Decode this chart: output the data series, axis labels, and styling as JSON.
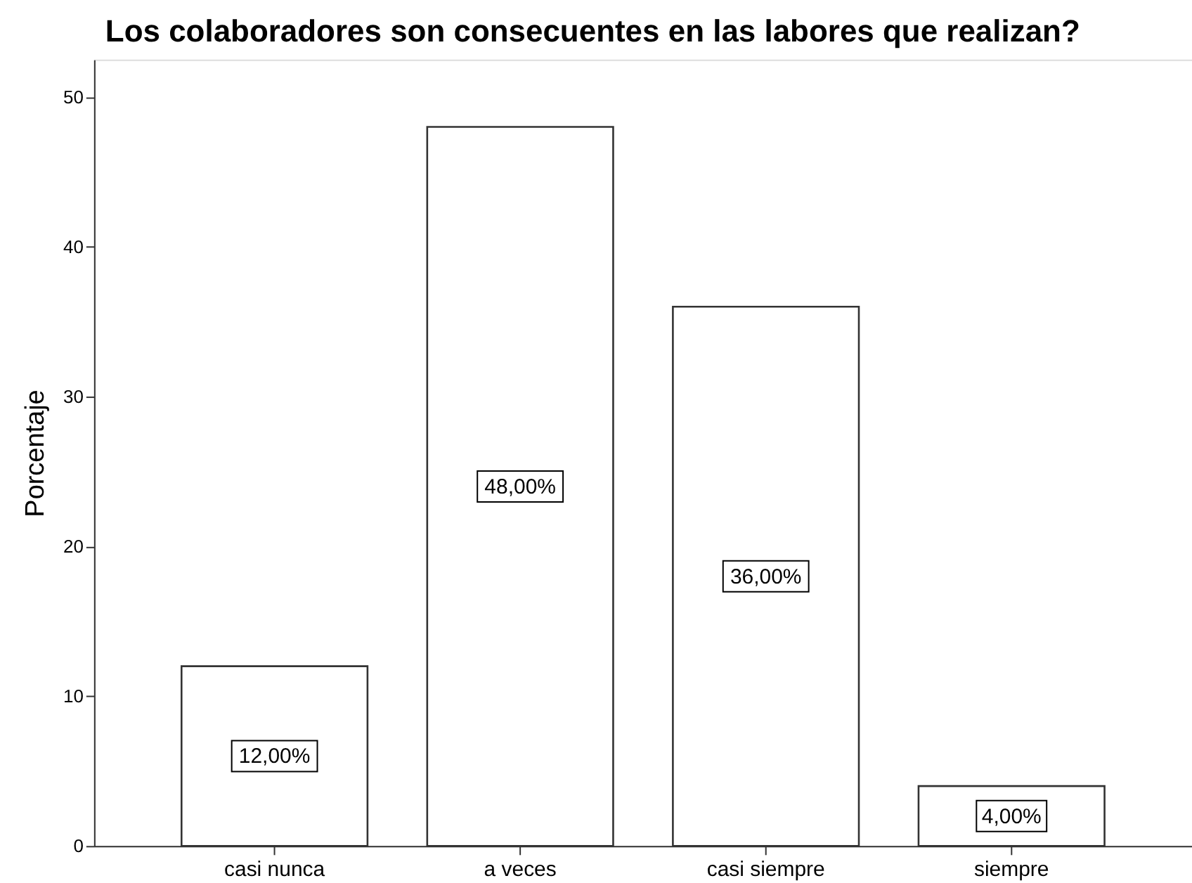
{
  "chart_data": {
    "type": "bar",
    "title": "Los colaboradores son consecuentes en las labores que realizan?",
    "ylabel": "Porcentaje",
    "categories": [
      "casi nunca",
      "a veces",
      "casi siempre",
      "siempre"
    ],
    "values": [
      12,
      48,
      36,
      4
    ],
    "color": "#ffffff",
    "value_labels": [
      "12,00%",
      "48,00%",
      "36,00%",
      "4,00%"
    ],
    "ylim": [
      0,
      52.5
    ],
    "yticks": [
      0,
      10,
      20,
      30,
      40,
      50
    ],
    "grid": false
  }
}
